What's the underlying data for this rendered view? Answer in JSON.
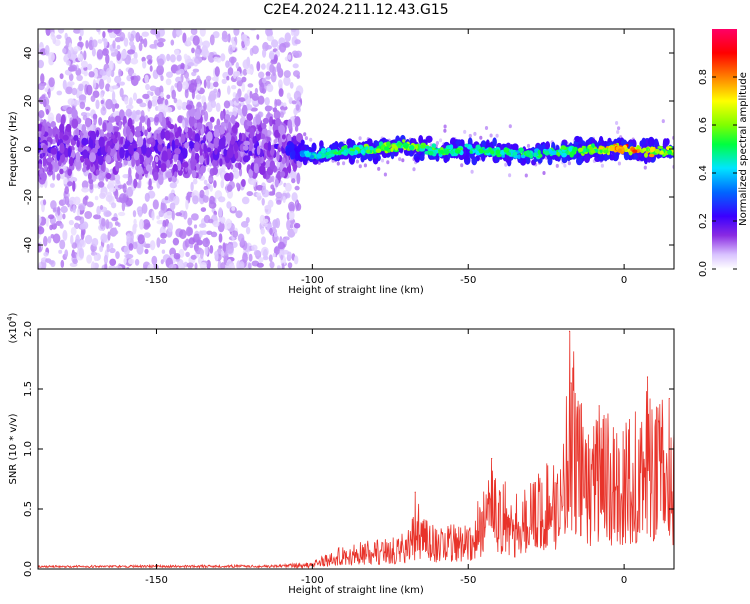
{
  "title": "C2E4.2024.211.12.43.G15",
  "chart_data": [
    {
      "type": "heatmap",
      "xlabel": "Height of straight line (km)",
      "ylabel": "Frequency (Hz)",
      "xlim": [
        -188,
        16
      ],
      "ylim": [
        -50,
        50
      ],
      "xticks": [
        -150,
        -100,
        -50,
        0
      ],
      "yticks": [
        -40,
        -20,
        0,
        20,
        40
      ],
      "xtick_labels": [
        "-150",
        "-100",
        "-50",
        "0"
      ],
      "ytick_labels": [
        "-40",
        "-20",
        "0",
        "20",
        "40"
      ],
      "colorbar": {
        "label": "Normalized spectral amplitude",
        "range": [
          0,
          1
        ],
        "ticks": [
          0.0,
          0.2,
          0.4,
          0.6,
          0.8
        ],
        "tick_labels": [
          "0.0",
          "0.2",
          "0.4",
          "0.6",
          "0.8"
        ],
        "colormap": [
          "#ffffff",
          "#b388ff",
          "#6a00ff",
          "#0000ff",
          "#00e5ff",
          "#00ff00",
          "#ffff00",
          "#ff8000",
          "#ff0000",
          "#ff0066"
        ]
      },
      "ridge": [
        {
          "x": -188,
          "y": 1.5,
          "amp": 0.22
        },
        {
          "x": -160,
          "y": 2.0,
          "amp": 0.25
        },
        {
          "x": -130,
          "y": 1.0,
          "amp": 0.24
        },
        {
          "x": -108,
          "y": 0.5,
          "amp": 0.28
        },
        {
          "x": -100,
          "y": -3.0,
          "amp": 0.45
        },
        {
          "x": -90,
          "y": -1.0,
          "amp": 0.52
        },
        {
          "x": -80,
          "y": 0.0,
          "amp": 0.58
        },
        {
          "x": -70,
          "y": 1.5,
          "amp": 0.6
        },
        {
          "x": -60,
          "y": -1.0,
          "amp": 0.55
        },
        {
          "x": -50,
          "y": -0.5,
          "amp": 0.52
        },
        {
          "x": -40,
          "y": -1.5,
          "amp": 0.48
        },
        {
          "x": -30,
          "y": -2.0,
          "amp": 0.5
        },
        {
          "x": -20,
          "y": -1.0,
          "amp": 0.52
        },
        {
          "x": -10,
          "y": -0.5,
          "amp": 0.62
        },
        {
          "x": 0,
          "y": 0.0,
          "amp": 0.85
        },
        {
          "x": 10,
          "y": -1.0,
          "amp": 0.7
        },
        {
          "x": 16,
          "y": -1.0,
          "amp": 0.6
        }
      ]
    },
    {
      "type": "line",
      "xlabel": "Height of straight line (km)",
      "ylabel": "SNR (10 * v/v)",
      "multiplier": "(x10^4)",
      "multiplier_base": "(x10",
      "multiplier_exp": "4",
      "multiplier_end": ")",
      "xlim": [
        -188,
        16
      ],
      "ylim": [
        0,
        20000
      ],
      "xticks": [
        -150,
        -100,
        -50,
        0
      ],
      "yticks": [
        0,
        5000,
        10000,
        15000,
        20000
      ],
      "xtick_labels": [
        "-150",
        "-100",
        "-50",
        "0"
      ],
      "ytick_labels": [
        "0.0",
        "0.5",
        "1.0",
        "1.5",
        "2.0"
      ],
      "color": "#e8332a",
      "envelope": [
        {
          "x": -188,
          "y": 200
        },
        {
          "x": -110,
          "y": 250
        },
        {
          "x": -100,
          "y": 700
        },
        {
          "x": -90,
          "y": 2000
        },
        {
          "x": -80,
          "y": 2500
        },
        {
          "x": -70,
          "y": 3000
        },
        {
          "x": -66,
          "y": 5500
        },
        {
          "x": -60,
          "y": 3500
        },
        {
          "x": -50,
          "y": 4000
        },
        {
          "x": -42,
          "y": 8500
        },
        {
          "x": -35,
          "y": 6500
        },
        {
          "x": -25,
          "y": 9000
        },
        {
          "x": -20,
          "y": 11000
        },
        {
          "x": -17,
          "y": 19800
        },
        {
          "x": -12,
          "y": 12000
        },
        {
          "x": -8,
          "y": 13500
        },
        {
          "x": 0,
          "y": 12000
        },
        {
          "x": 8,
          "y": 15500
        },
        {
          "x": 16,
          "y": 13000
        }
      ],
      "peaks": [
        {
          "x": -17.5,
          "y": 19800
        },
        {
          "x": -17,
          "y": 15500
        },
        {
          "x": -8,
          "y": 13600
        },
        {
          "x": 7.5,
          "y": 16000
        },
        {
          "x": 14.5,
          "y": 14200
        },
        {
          "x": -42.5,
          "y": 9200
        },
        {
          "x": -67,
          "y": 6400
        }
      ]
    }
  ]
}
